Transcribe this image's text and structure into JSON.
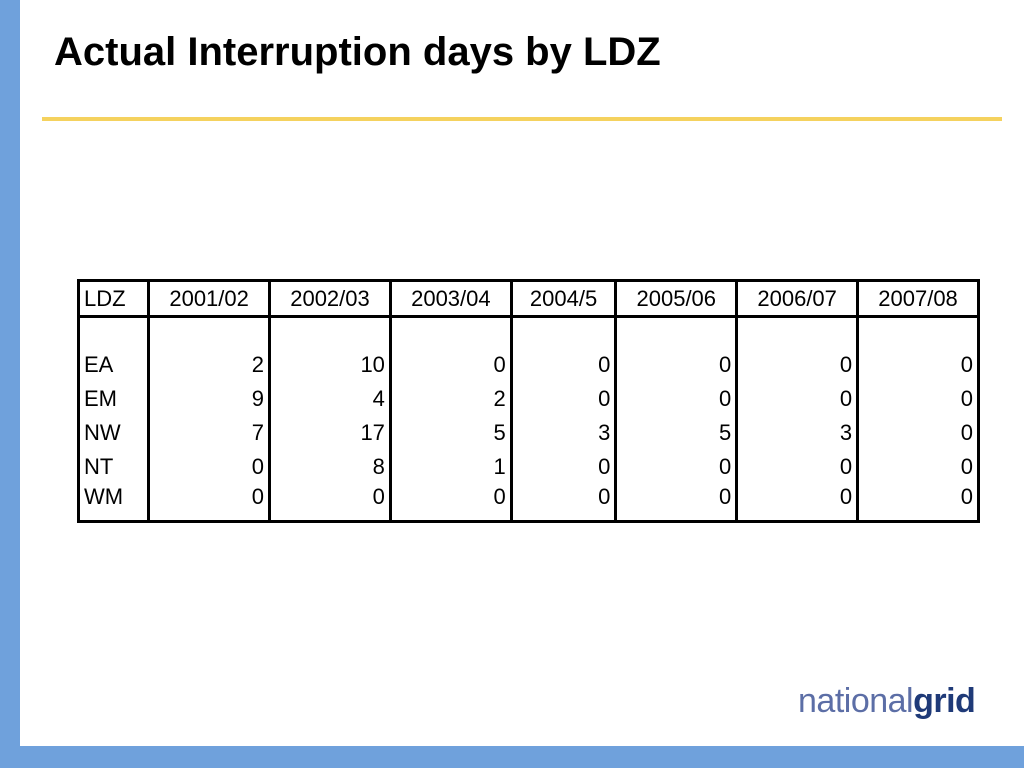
{
  "slide": {
    "title": "Actual Interruption days by LDZ",
    "accent_color": "#6fa1dc",
    "rule_color": "#f5d25e"
  },
  "table": {
    "columns": [
      "LDZ",
      "2001/02",
      "2002/03",
      "2003/04",
      "2004/5",
      "2005/06",
      "2006/07",
      "2007/08"
    ],
    "rows": [
      {
        "ldz": "EA",
        "values": [
          "2",
          "10",
          "0",
          "0",
          "0",
          "0",
          "0"
        ]
      },
      {
        "ldz": "EM",
        "values": [
          "9",
          "4",
          "2",
          "0",
          "0",
          "0",
          "0"
        ]
      },
      {
        "ldz": "NW",
        "values": [
          "7",
          "17",
          "5",
          "3",
          "5",
          "3",
          "0"
        ]
      },
      {
        "ldz": "NT",
        "values": [
          "0",
          "8",
          "1",
          "0",
          "0",
          "0",
          "0"
        ]
      },
      {
        "ldz": "WM",
        "values": [
          "0",
          "0",
          "0",
          "0",
          "0",
          "0",
          "0"
        ]
      }
    ]
  },
  "logo": {
    "part1": "national",
    "part2": "grid"
  }
}
